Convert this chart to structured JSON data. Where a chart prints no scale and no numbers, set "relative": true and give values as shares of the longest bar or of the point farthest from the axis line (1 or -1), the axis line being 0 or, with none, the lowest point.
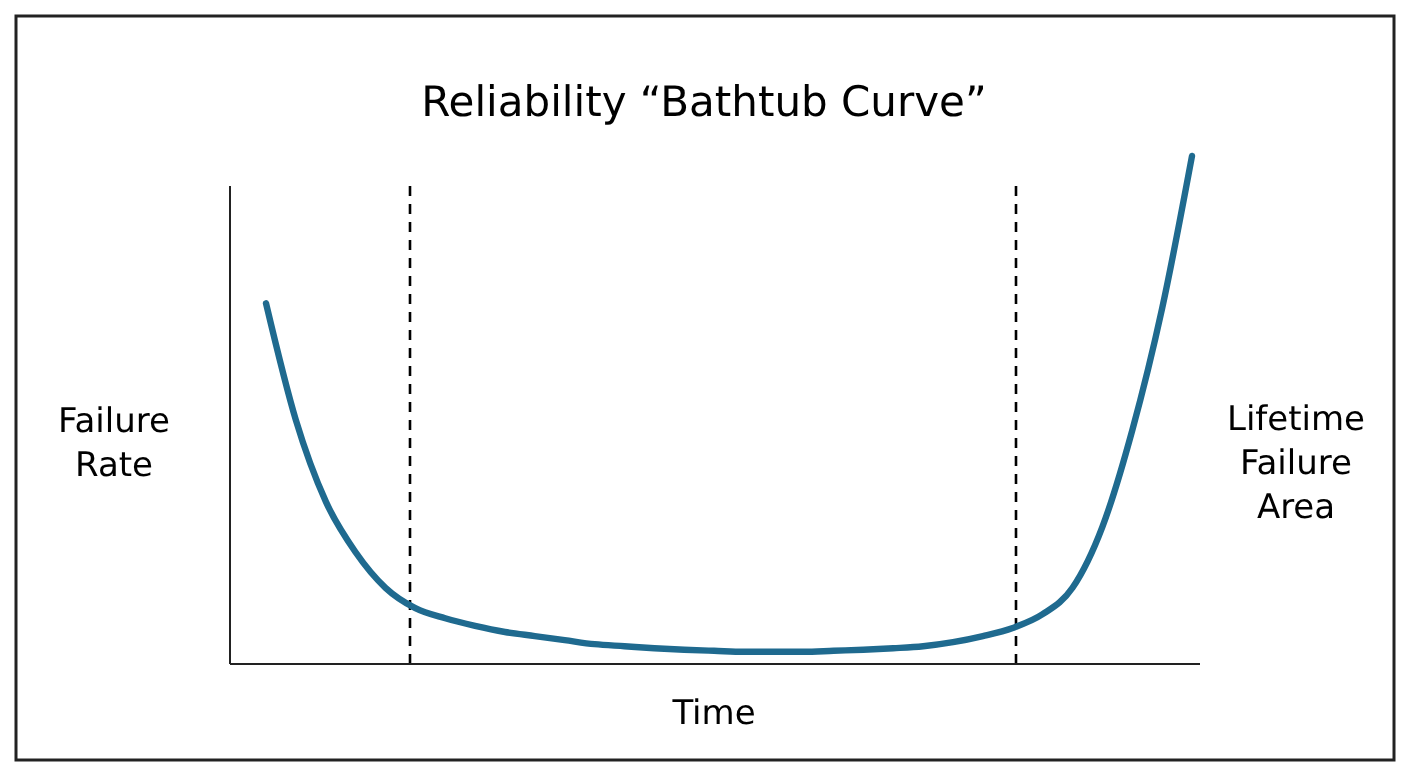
{
  "chart_data": {
    "type": "line",
    "title": "Reliability “Bathtub Curve”",
    "xlabel": "Time",
    "ylabel": "Failure Rate",
    "relative": true,
    "categories": [
      null,
      null,
      null,
      null,
      null,
      null,
      null,
      null,
      null,
      null,
      null,
      null,
      null,
      null,
      null,
      null,
      null,
      null,
      null,
      null,
      null,
      null,
      null,
      null,
      null,
      null,
      null,
      null,
      null,
      null,
      null,
      null
    ],
    "series": [
      {
        "color": "#1f6a8f",
        "values": [
          0.71,
          0.48,
          0.32,
          0.22,
          0.15,
          0.11,
          0.09,
          0.075,
          0.063,
          0.055,
          0.047,
          0.039,
          0.035,
          0.031,
          0.028,
          0.026,
          0.024,
          0.024,
          0.024,
          0.026,
          0.028,
          0.031,
          0.035,
          0.043,
          0.055,
          0.071,
          0.098,
          0.15,
          0.27,
          0.46,
          0.7,
          1
        ]
      }
    ],
    "annotations": [
      "Lifetime Failure Area"
    ],
    "marker": "none"
  }
}
